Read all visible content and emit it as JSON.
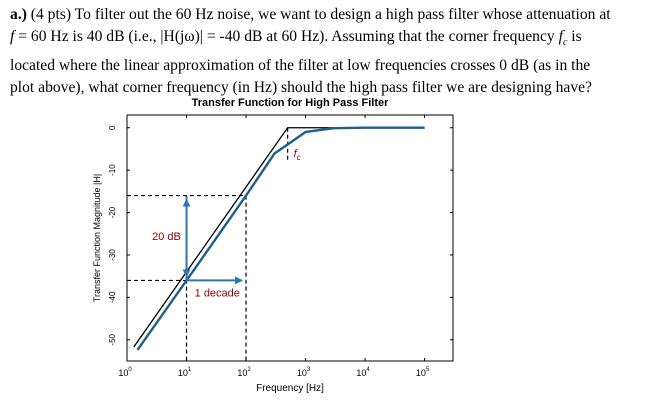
{
  "question": {
    "label": "a.)",
    "line1_a": " (4 pts) To filter out the 60 Hz noise, we want to design a high pass filter whose attenuation at",
    "line2_f": "f",
    "line2_b": " = 60 Hz is 40 dB (i.e., |H(jω)| = -40 dB at 60 Hz). Assuming that the corner frequency ",
    "line2_fc": "f",
    "line2_fc_sub": "c",
    "line2_c": " is",
    "line3": "located where the linear approximation of the filter at low frequencies crosses 0 dB (as in the",
    "line4": "plot above), what corner frequency (in Hz) should the high pass filter we are designing have?"
  },
  "chart_data": {
    "type": "line",
    "title": "Transfer Function for High Pass Filter",
    "xlabel": "Frequency [Hz]",
    "ylabel": "Transfer Function Magnitude |H|",
    "x_scale": "log",
    "xlim": [
      1,
      300000
    ],
    "ylim": [
      -55,
      3
    ],
    "x_ticks": [
      1,
      10,
      100,
      1000,
      10000,
      100000
    ],
    "x_tick_labels": [
      {
        "base": "10",
        "exp": "0"
      },
      {
        "base": "10",
        "exp": "1"
      },
      {
        "base": "10",
        "exp": "2"
      },
      {
        "base": "10",
        "exp": "3"
      },
      {
        "base": "10",
        "exp": "4"
      },
      {
        "base": "10",
        "exp": "5"
      }
    ],
    "y_ticks": [
      0,
      -10,
      -20,
      -30,
      -40,
      -50
    ],
    "y_tick_labels": [
      "0",
      "-10",
      "-20",
      "-30",
      "-40",
      "-50"
    ],
    "corner_frequency": 500,
    "series": [
      {
        "color": "#1f5f8b",
        "x": [
          1.5,
          3,
          10,
          30,
          100,
          300,
          1000,
          3000,
          10000,
          100000
        ],
        "y": [
          -52.4,
          -46.4,
          -36.0,
          -26.5,
          -16.0,
          -6.1,
          -1.0,
          -0.1,
          0.0,
          0.0
        ]
      },
      {
        "color": "#000000",
        "x": [
          1.3,
          500,
          100000
        ],
        "y": [
          -51.7,
          0,
          0
        ]
      }
    ],
    "annotations": {
      "corner_label": "f",
      "corner_label_sub": "c",
      "vertical_span_label": "20 dB",
      "horizontal_span_label": "1 decade",
      "dashed_levels": [
        -16,
        -36
      ],
      "dashed_frequencies": [
        10,
        100
      ]
    },
    "colors": {
      "response_curve": "#1f5f8b",
      "asymptote": "#000000",
      "arrows": "#2e75b6",
      "labels": "#8b0000"
    },
    "grid": false
  }
}
